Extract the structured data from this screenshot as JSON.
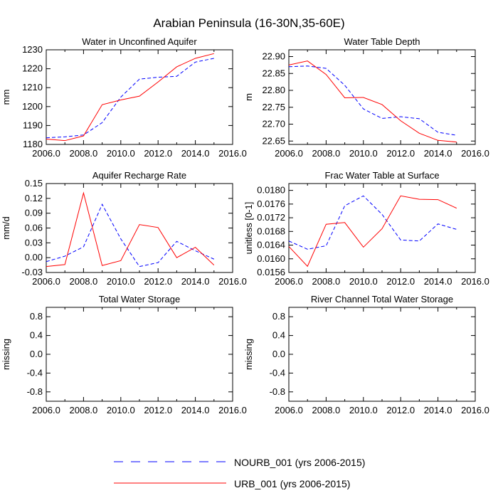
{
  "page_title": "Arabian Peninsula (16-30N,35-60E)",
  "legend": [
    {
      "label": "NOURB_001 (yrs 2006-2015)",
      "color": "#0000ff",
      "dash": "dashed"
    },
    {
      "label": "URB_001 (yrs 2006-2015)",
      "color": "#ff0000",
      "dash": "solid"
    }
  ],
  "chart_data": [
    {
      "type": "line",
      "title": "Water in Unconfined Aquifer",
      "xlabel": "",
      "ylabel": "mm",
      "xlim": [
        2006,
        2016
      ],
      "ylim": [
        1180,
        1230
      ],
      "xticks": [
        "2006.0",
        "2008.0",
        "2010.0",
        "2012.0",
        "2014.0",
        "2016.0"
      ],
      "yticks": [
        "1180",
        "1190",
        "1200",
        "1210",
        "1220",
        "1230"
      ],
      "x": [
        2006,
        2007,
        2008,
        2009,
        2010,
        2011,
        2012,
        2013,
        2014,
        2015
      ],
      "series": [
        {
          "name": "NOURB_001",
          "values": [
            1183.5,
            1184.0,
            1185.0,
            1191.5,
            1205.0,
            1214.5,
            1215.5,
            1216.0,
            1223.5,
            1225.5
          ]
        },
        {
          "name": "URB_001",
          "values": [
            1182.8,
            1182.0,
            1184.5,
            1201.0,
            1203.5,
            1205.5,
            1213.0,
            1221.0,
            1225.5,
            1228.0
          ]
        }
      ]
    },
    {
      "type": "line",
      "title": "Water Table Depth",
      "xlabel": "",
      "ylabel": "m",
      "xlim": [
        2006,
        2016
      ],
      "ylim": [
        22.64,
        22.92
      ],
      "xticks": [
        "2006.0",
        "2008.0",
        "2010.0",
        "2012.0",
        "2014.0",
        "2016.0"
      ],
      "yticks": [
        "22.65",
        "22.70",
        "22.75",
        "22.80",
        "22.85",
        "22.90"
      ],
      "x": [
        2006,
        2007,
        2008,
        2009,
        2010,
        2011,
        2012,
        2013,
        2014,
        2015
      ],
      "series": [
        {
          "name": "NOURB_001",
          "values": [
            22.87,
            22.872,
            22.865,
            22.815,
            22.745,
            22.717,
            22.722,
            22.716,
            22.676,
            22.667
          ]
        },
        {
          "name": "URB_001",
          "values": [
            22.875,
            22.887,
            22.847,
            22.778,
            22.779,
            22.758,
            22.71,
            22.673,
            22.652,
            22.647
          ]
        }
      ]
    },
    {
      "type": "line",
      "title": "Aquifer Recharge Rate",
      "xlabel": "",
      "ylabel": "mm/d",
      "xlim": [
        2006,
        2016
      ],
      "ylim": [
        -0.03,
        0.15
      ],
      "xticks": [
        "2006.0",
        "2008.0",
        "2010.0",
        "2012.0",
        "2014.0",
        "2016.0"
      ],
      "yticks": [
        "-0.03",
        "0.00",
        "0.03",
        "0.06",
        "0.09",
        "0.12",
        "0.15"
      ],
      "x": [
        2006,
        2007,
        2008,
        2009,
        2010,
        2011,
        2012,
        2013,
        2014,
        2015
      ],
      "series": [
        {
          "name": "NOURB_001",
          "values": [
            -0.008,
            0.003,
            0.022,
            0.108,
            0.038,
            -0.018,
            -0.01,
            0.033,
            0.014,
            -0.003
          ]
        },
        {
          "name": "URB_001",
          "values": [
            -0.018,
            -0.014,
            0.131,
            -0.016,
            -0.006,
            0.067,
            0.061,
            0.0,
            0.021,
            -0.015
          ]
        }
      ]
    },
    {
      "type": "line",
      "title": "Frac Water Table at Surface",
      "xlabel": "",
      "ylabel": "unitless [0-1]",
      "xlim": [
        2006,
        2016
      ],
      "ylim": [
        0.0156,
        0.0182
      ],
      "xticks": [
        "2006.0",
        "2008.0",
        "2010.0",
        "2012.0",
        "2014.0",
        "2016.0"
      ],
      "yticks": [
        "0.0156",
        "0.0160",
        "0.0164",
        "0.0168",
        "0.0172",
        "0.0176",
        "0.0180"
      ],
      "x": [
        2006,
        2007,
        2008,
        2009,
        2010,
        2011,
        2012,
        2013,
        2014,
        2015
      ],
      "series": [
        {
          "name": "NOURB_001",
          "values": [
            0.01652,
            0.01628,
            0.01638,
            0.01755,
            0.01784,
            0.0173,
            0.01655,
            0.01652,
            0.01702,
            0.01686
          ]
        },
        {
          "name": "URB_001",
          "values": [
            0.01636,
            0.01578,
            0.01701,
            0.01706,
            0.01634,
            0.01688,
            0.01784,
            0.01774,
            0.01773,
            0.01748
          ]
        }
      ]
    },
    {
      "type": "line",
      "title": "Total Water Storage",
      "xlabel": "",
      "ylabel": "missing",
      "xlim": [
        2006,
        2016
      ],
      "ylim": [
        -1,
        1
      ],
      "xticks": [
        "2006.0",
        "2008.0",
        "2010.0",
        "2012.0",
        "2014.0",
        "2016.0"
      ],
      "yticks": [
        "-0.8",
        "-0.4",
        "0.0",
        "0.4",
        "0.8"
      ],
      "x": [],
      "series": []
    },
    {
      "type": "line",
      "title": "River Channel Total Water Storage",
      "xlabel": "",
      "ylabel": "missing",
      "xlim": [
        2006,
        2016
      ],
      "ylim": [
        -1,
        1
      ],
      "xticks": [
        "2006.0",
        "2008.0",
        "2010.0",
        "2012.0",
        "2014.0",
        "2016.0"
      ],
      "yticks": [
        "-0.8",
        "-0.4",
        "0.0",
        "0.4",
        "0.8"
      ],
      "x": [],
      "series": []
    }
  ]
}
